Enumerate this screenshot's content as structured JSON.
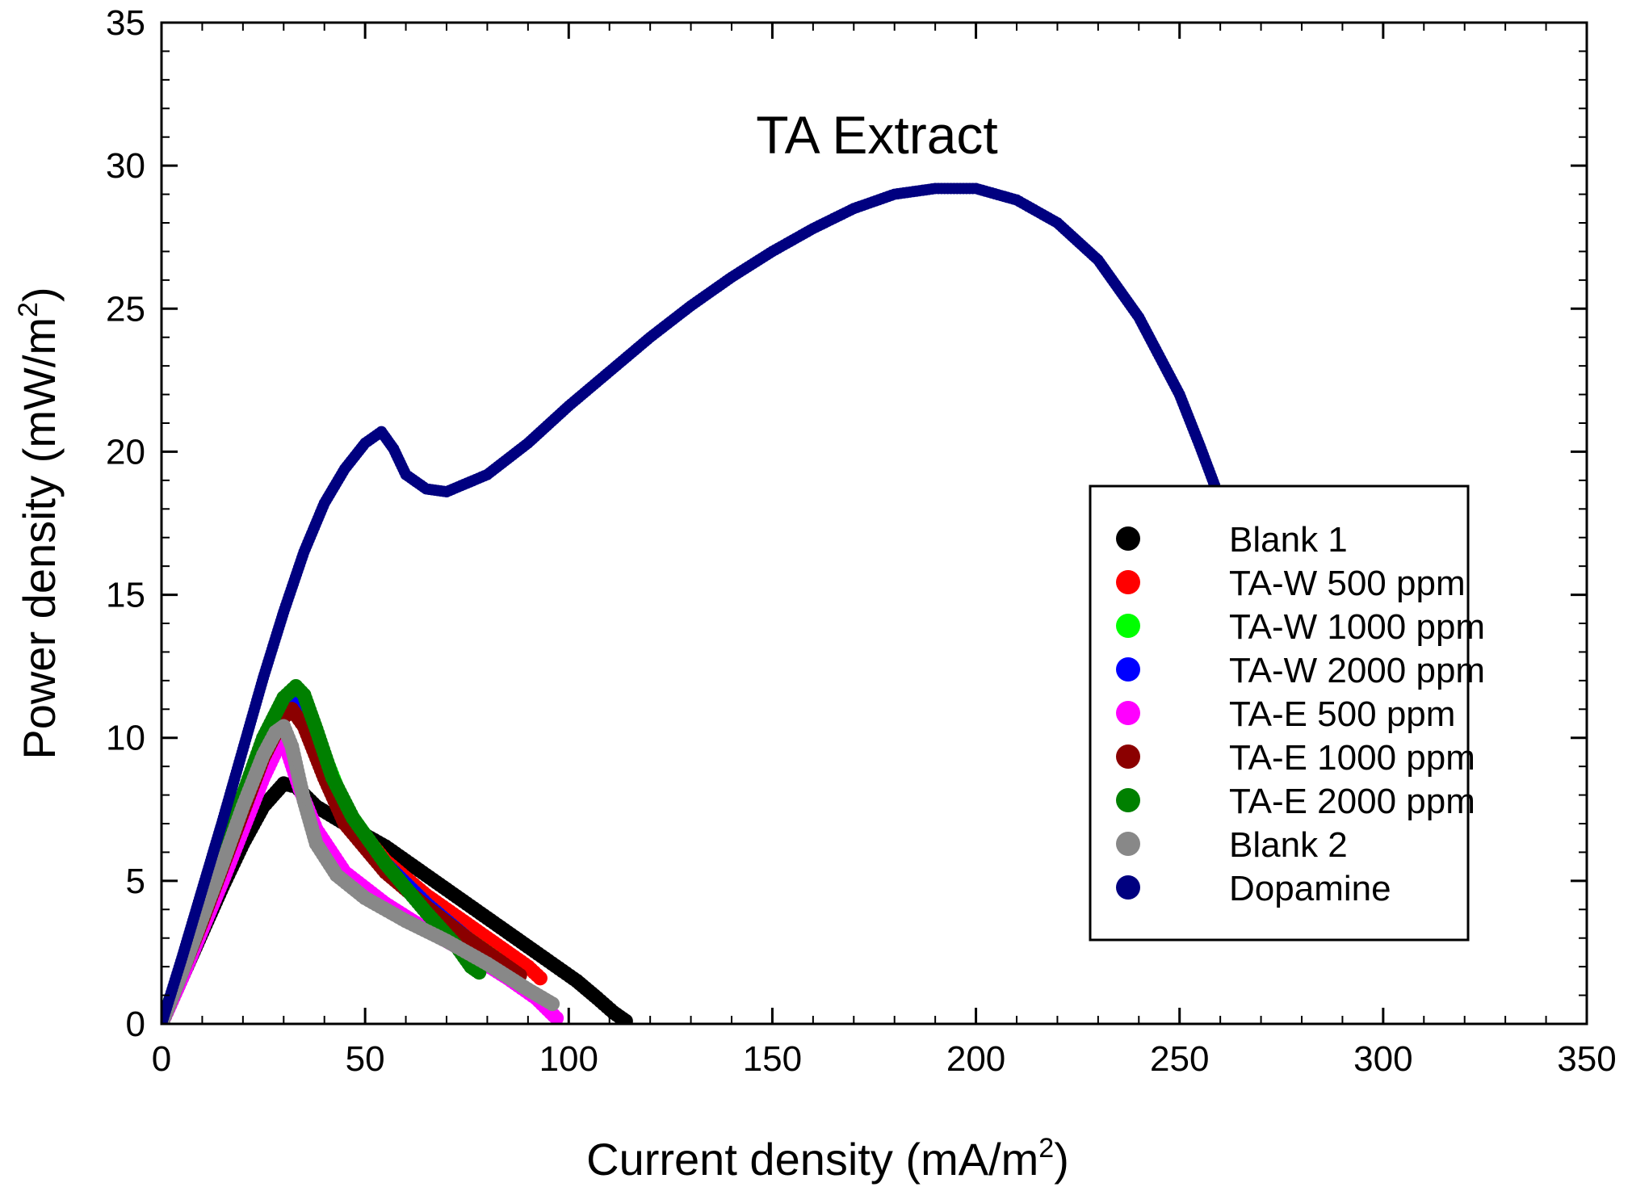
{
  "chart_data": {
    "type": "scatter",
    "title": "TA Extract",
    "xlabel": "Current density (mA/m",
    "xlabel_sup": "2",
    "xlabel_end": ")",
    "ylabel": "Power density (mW/m",
    "ylabel_sup": "2",
    "ylabel_end": ")",
    "xlim": [
      0,
      350
    ],
    "ylim": [
      0,
      35
    ],
    "x_ticks": [
      "0",
      "50",
      "100",
      "150",
      "200",
      "250",
      "300",
      "350"
    ],
    "y_ticks": [
      "0",
      "5",
      "10",
      "15",
      "20",
      "25",
      "30",
      "35"
    ],
    "grid": false,
    "legend_position": "right",
    "series": [
      {
        "name": "Blank 1",
        "color": "#000000",
        "points": [
          [
            0,
            0
          ],
          [
            5,
            1.6
          ],
          [
            10,
            3.2
          ],
          [
            15,
            4.8
          ],
          [
            20,
            6.3
          ],
          [
            25,
            7.6
          ],
          [
            30,
            8.4
          ],
          [
            33,
            8.3
          ],
          [
            38,
            7.6
          ],
          [
            45,
            7.0
          ],
          [
            55,
            6.2
          ],
          [
            65,
            5.2
          ],
          [
            75,
            4.2
          ],
          [
            85,
            3.2
          ],
          [
            95,
            2.2
          ],
          [
            102,
            1.5
          ],
          [
            107,
            0.9
          ],
          [
            111,
            0.4
          ],
          [
            114,
            0.1
          ]
        ]
      },
      {
        "name": "TA-W 500 ppm",
        "color": "#ff0000",
        "points": [
          [
            0,
            0
          ],
          [
            5,
            1.8
          ],
          [
            10,
            3.7
          ],
          [
            15,
            5.6
          ],
          [
            20,
            7.5
          ],
          [
            25,
            9.3
          ],
          [
            29,
            10.6
          ],
          [
            32,
            11.1
          ],
          [
            35,
            10.6
          ],
          [
            40,
            9.0
          ],
          [
            45,
            7.4
          ],
          [
            55,
            5.7
          ],
          [
            65,
            4.5
          ],
          [
            75,
            3.5
          ],
          [
            85,
            2.5
          ],
          [
            90,
            2.0
          ],
          [
            93,
            1.6
          ]
        ]
      },
      {
        "name": "TA-W 1000 ppm",
        "color": "#00ff00",
        "points": [
          [
            0,
            0
          ],
          [
            5,
            1.9
          ],
          [
            10,
            3.8
          ],
          [
            15,
            5.8
          ],
          [
            20,
            7.8
          ],
          [
            25,
            9.7
          ],
          [
            30,
            11.2
          ],
          [
            33,
            11.7
          ],
          [
            36,
            11.0
          ],
          [
            40,
            9.4
          ],
          [
            45,
            7.6
          ],
          [
            55,
            5.6
          ],
          [
            65,
            4.2
          ],
          [
            75,
            3.0
          ],
          [
            82,
            2.3
          ],
          [
            85,
            1.9
          ]
        ]
      },
      {
        "name": "TA-W 2000 ppm",
        "color": "#0000ff",
        "points": [
          [
            0,
            0
          ],
          [
            5,
            1.9
          ],
          [
            10,
            3.8
          ],
          [
            15,
            5.7
          ],
          [
            20,
            7.7
          ],
          [
            25,
            9.6
          ],
          [
            30,
            11.0
          ],
          [
            33,
            11.3
          ],
          [
            36,
            10.7
          ],
          [
            40,
            9.2
          ],
          [
            45,
            7.5
          ],
          [
            55,
            5.6
          ],
          [
            65,
            4.2
          ],
          [
            75,
            3.0
          ],
          [
            83,
            2.1
          ],
          [
            86,
            1.8
          ]
        ]
      },
      {
        "name": "TA-E 500 ppm",
        "color": "#ff00ff",
        "points": [
          [
            0,
            0
          ],
          [
            5,
            1.6
          ],
          [
            10,
            3.3
          ],
          [
            15,
            5.0
          ],
          [
            20,
            6.8
          ],
          [
            25,
            8.6
          ],
          [
            29,
            9.8
          ],
          [
            31,
            9.5
          ],
          [
            34,
            8.2
          ],
          [
            38,
            6.8
          ],
          [
            45,
            5.3
          ],
          [
            55,
            4.2
          ],
          [
            65,
            3.3
          ],
          [
            75,
            2.5
          ],
          [
            85,
            1.6
          ],
          [
            92,
            0.9
          ],
          [
            97,
            0.2
          ]
        ]
      },
      {
        "name": "TA-E 1000 ppm",
        "color": "#8b0000",
        "points": [
          [
            0,
            0
          ],
          [
            5,
            1.8
          ],
          [
            10,
            3.6
          ],
          [
            15,
            5.5
          ],
          [
            20,
            7.4
          ],
          [
            25,
            9.3
          ],
          [
            30,
            10.7
          ],
          [
            32,
            11.0
          ],
          [
            35,
            10.4
          ],
          [
            40,
            8.6
          ],
          [
            45,
            7.0
          ],
          [
            55,
            5.3
          ],
          [
            65,
            4.1
          ],
          [
            75,
            3.0
          ],
          [
            85,
            2.0
          ],
          [
            88,
            1.7
          ]
        ]
      },
      {
        "name": "TA-E 2000 ppm",
        "color": "#008000",
        "points": [
          [
            0,
            0
          ],
          [
            5,
            1.9
          ],
          [
            10,
            3.9
          ],
          [
            15,
            5.9
          ],
          [
            20,
            8.0
          ],
          [
            25,
            10.0
          ],
          [
            30,
            11.4
          ],
          [
            33,
            11.8
          ],
          [
            35,
            11.5
          ],
          [
            38,
            10.3
          ],
          [
            42,
            8.6
          ],
          [
            47,
            7.2
          ],
          [
            55,
            5.6
          ],
          [
            65,
            3.9
          ],
          [
            72,
            2.8
          ],
          [
            76,
            2.0
          ],
          [
            78,
            1.8
          ]
        ]
      },
      {
        "name": "Blank 2",
        "color": "#888888",
        "points": [
          [
            0,
            0
          ],
          [
            5,
            1.8
          ],
          [
            10,
            3.7
          ],
          [
            15,
            5.6
          ],
          [
            20,
            7.6
          ],
          [
            25,
            9.4
          ],
          [
            28,
            10.2
          ],
          [
            30,
            10.4
          ],
          [
            32,
            9.7
          ],
          [
            35,
            7.8
          ],
          [
            38,
            6.3
          ],
          [
            43,
            5.2
          ],
          [
            50,
            4.4
          ],
          [
            60,
            3.6
          ],
          [
            70,
            2.9
          ],
          [
            80,
            2.1
          ],
          [
            90,
            1.2
          ],
          [
            96,
            0.7
          ]
        ]
      },
      {
        "name": "Dopamine",
        "color": "#000080",
        "points": [
          [
            0,
            0
          ],
          [
            5,
            2.3
          ],
          [
            10,
            4.7
          ],
          [
            15,
            7.1
          ],
          [
            20,
            9.6
          ],
          [
            25,
            12.1
          ],
          [
            30,
            14.4
          ],
          [
            35,
            16.5
          ],
          [
            40,
            18.2
          ],
          [
            45,
            19.4
          ],
          [
            50,
            20.3
          ],
          [
            54,
            20.7
          ],
          [
            57,
            20.1
          ],
          [
            60,
            19.2
          ],
          [
            65,
            18.7
          ],
          [
            70,
            18.6
          ],
          [
            80,
            19.2
          ],
          [
            90,
            20.3
          ],
          [
            100,
            21.6
          ],
          [
            110,
            22.8
          ],
          [
            120,
            24.0
          ],
          [
            130,
            25.1
          ],
          [
            140,
            26.1
          ],
          [
            150,
            27.0
          ],
          [
            160,
            27.8
          ],
          [
            170,
            28.5
          ],
          [
            180,
            29.0
          ],
          [
            190,
            29.2
          ],
          [
            200,
            29.2
          ],
          [
            210,
            28.8
          ],
          [
            220,
            28.0
          ],
          [
            230,
            26.7
          ],
          [
            240,
            24.7
          ],
          [
            250,
            22.0
          ],
          [
            255,
            20.2
          ],
          [
            260,
            18.3
          ]
        ]
      }
    ]
  }
}
